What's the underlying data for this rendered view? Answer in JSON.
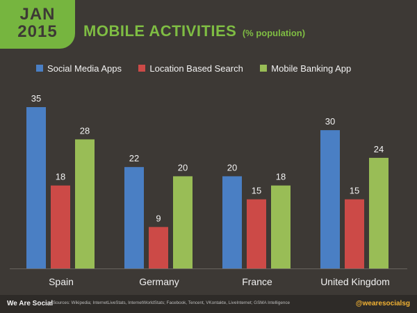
{
  "badge": {
    "month": "JAN",
    "year": "2015"
  },
  "header": {
    "title": "MOBILE ACTIVITIES",
    "subtitle": "(% population)"
  },
  "colors": {
    "background": "#3d3935",
    "accent": "#76b53f",
    "social": "#4a7fc4",
    "location": "#cc4a47",
    "banking": "#99bd56"
  },
  "chart_data": {
    "type": "bar",
    "title": "MOBILE ACTIVITIES",
    "subtitle": "(% population)",
    "categories": [
      "Spain",
      "Germany",
      "France",
      "United Kingdom"
    ],
    "series": [
      {
        "name": "Social Media Apps",
        "color": "#4a7fc4",
        "values": [
          35,
          22,
          20,
          30
        ]
      },
      {
        "name": "Location Based Search",
        "color": "#cc4a47",
        "values": [
          18,
          9,
          15,
          15
        ]
      },
      {
        "name": "Mobile Banking App",
        "color": "#99bd56",
        "values": [
          28,
          20,
          18,
          24
        ]
      }
    ],
    "ylim": [
      0,
      35
    ],
    "legend_position": "top-left",
    "grid": false
  },
  "footer": {
    "brand": "We Are Social",
    "sources": "• Sources: Wikipedia; InternetLiveStats, InternetWorldStats; Facebook, Tencent, VKontakte, LiveInternet; GSMA Intelligence",
    "handle": "@wearesocialsg"
  }
}
